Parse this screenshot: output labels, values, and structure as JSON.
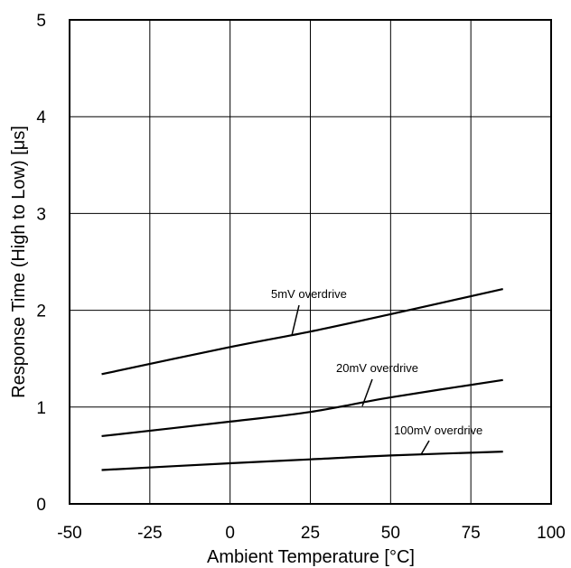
{
  "chart_data": {
    "type": "line",
    "title": "",
    "xlabel": "Ambient Temperature [°C]",
    "ylabel": "Response Time (High to Low) [μs]",
    "xlim": [
      -50,
      100
    ],
    "ylim": [
      0,
      5
    ],
    "xticks": [
      "-50",
      "-25",
      "0",
      "25",
      "50",
      "75",
      "100"
    ],
    "yticks": [
      "0",
      "1",
      "2",
      "3",
      "4",
      "5"
    ],
    "grid": true,
    "series": [
      {
        "name": "5mV overdrive",
        "x": [
          -40,
          0,
          25,
          50,
          85
        ],
        "y": [
          1.34,
          1.62,
          1.78,
          1.96,
          2.22
        ]
      },
      {
        "name": "20mV overdrive",
        "x": [
          -40,
          0,
          25,
          50,
          85
        ],
        "y": [
          0.7,
          0.85,
          0.95,
          1.1,
          1.28
        ]
      },
      {
        "name": "100mV overdrive",
        "x": [
          -40,
          0,
          25,
          50,
          85
        ],
        "y": [
          0.35,
          0.42,
          0.46,
          0.5,
          0.54
        ]
      }
    ],
    "annotations": [
      {
        "text": "5mV overdrive",
        "series": 0
      },
      {
        "text": "20mV overdrive",
        "series": 1
      },
      {
        "text": "100mV overdrive",
        "series": 2
      }
    ],
    "colors": {
      "line": "#000000",
      "grid": "#000000",
      "background": "#ffffff"
    }
  }
}
